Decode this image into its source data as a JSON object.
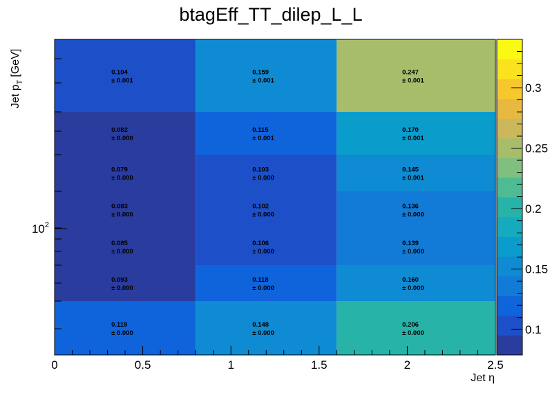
{
  "chart_data": {
    "type": "heatmap",
    "title": "btagEff_TT_dilep_L_L",
    "xlabel": "Jet η",
    "ylabel_main": "Jet p",
    "ylabel_sub": "T",
    "ylabel_unit": "[GeV]",
    "x_edges": [
      0,
      0.8,
      1.6,
      2.5
    ],
    "xlim": [
      0,
      2.5
    ],
    "x_ticks": [
      "0",
      "0.5",
      "1",
      "1.5",
      "2",
      "2.5"
    ],
    "y_scale": "log",
    "y_tick_base": "10",
    "y_tick_exp": "2",
    "z_range": [
      0.079,
      0.34
    ],
    "z_ticks": [
      "0.1",
      "0.15",
      "0.2",
      "0.25",
      "0.3"
    ],
    "rows": [
      {
        "values": [
          0.119,
          0.148,
          0.206
        ],
        "errors": [
          "± 0.000",
          "± 0.000",
          "± 0.000"
        ],
        "labels": [
          "0.119",
          "0.148",
          "0.206"
        ]
      },
      {
        "values": [
          0.093,
          0.118,
          0.16
        ],
        "errors": [
          "± 0.000",
          "± 0.000",
          "± 0.000"
        ],
        "labels": [
          "0.093",
          "0.118",
          "0.160"
        ]
      },
      {
        "values": [
          0.085,
          0.106,
          0.139
        ],
        "errors": [
          "± 0.000",
          "± 0.000",
          "± 0.000"
        ],
        "labels": [
          "0.085",
          "0.106",
          "0.139"
        ]
      },
      {
        "values": [
          0.083,
          0.102,
          0.136
        ],
        "errors": [
          "± 0.000",
          "± 0.000",
          "± 0.000"
        ],
        "labels": [
          "0.083",
          "0.102",
          "0.136"
        ]
      },
      {
        "values": [
          0.079,
          0.103,
          0.145
        ],
        "errors": [
          "± 0.000",
          "± 0.000",
          "± 0.001"
        ],
        "labels": [
          "0.079",
          "0.103",
          "0.145"
        ]
      },
      {
        "values": [
          0.082,
          0.115,
          0.17
        ],
        "errors": [
          "± 0.000",
          "± 0.001",
          "± 0.001"
        ],
        "labels": [
          "0.082",
          "0.115",
          "0.170"
        ]
      },
      {
        "values": [
          0.104,
          0.159,
          0.247
        ],
        "errors": [
          "± 0.001",
          "± 0.001",
          "± 0.001"
        ],
        "labels": [
          "0.104",
          "0.159",
          "0.247"
        ]
      }
    ],
    "palette": [
      "#2a3d9e",
      "#1d4fc9",
      "#0f64dc",
      "#127bd8",
      "#0e8bd2",
      "#0a9dcb",
      "#15aabd",
      "#28b3a8",
      "#4fbb94",
      "#80bf7e",
      "#a8bd6a",
      "#ccb85a",
      "#e8b941",
      "#f7c82e",
      "#fbe21e",
      "#faf914"
    ]
  }
}
